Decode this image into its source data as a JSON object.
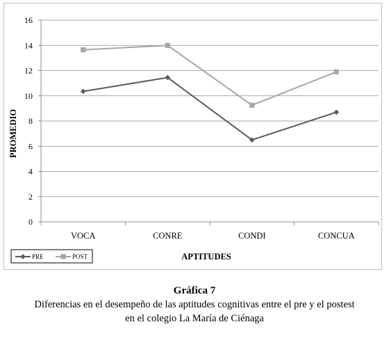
{
  "chart_data": {
    "type": "line",
    "categories": [
      "VOCA",
      "CONRE",
      "CONDI",
      "CONCUA"
    ],
    "series": [
      {
        "name": "PRE",
        "values": [
          10.35,
          11.45,
          6.5,
          8.7
        ],
        "color": "#595959",
        "marker": "diamond"
      },
      {
        "name": "POST",
        "values": [
          13.65,
          14.0,
          9.25,
          11.9
        ],
        "color": "#a6a6a6",
        "marker": "square"
      }
    ],
    "xlabel": "APTITUDES",
    "ylabel": "PROMEDIO",
    "ylim": [
      0,
      16
    ],
    "yticks": [
      "0",
      "2",
      "4",
      "6",
      "8",
      "10",
      "12",
      "14",
      "16"
    ],
    "grid": true,
    "legend_position": "bottom-left"
  },
  "caption": {
    "title": "Gráfica 7",
    "text": "Diferencias en el desempeño de las aptitudes cognitivas entre el pre y el postest en el colegio La María de Ciénaga"
  }
}
